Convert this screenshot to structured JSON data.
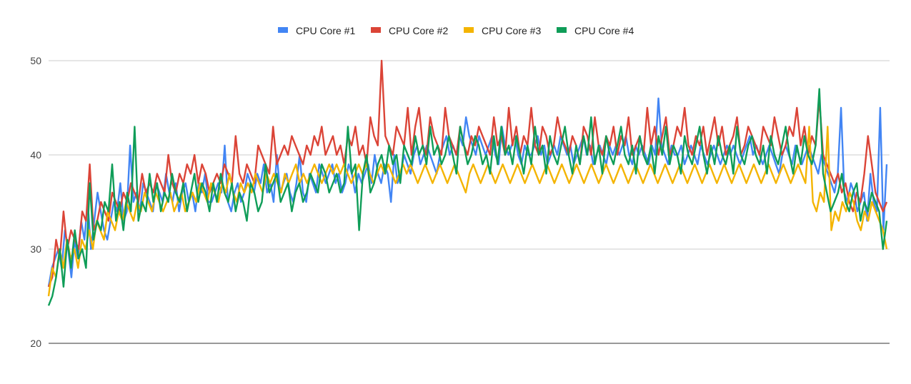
{
  "chart_data": {
    "type": "line",
    "title": "",
    "xlabel": "",
    "ylabel": "",
    "ylim": [
      20,
      50
    ],
    "yticks": [
      20,
      30,
      40,
      50
    ],
    "grid": true,
    "legend_position": "top",
    "series": [
      {
        "name": "CPU Core #1",
        "color": "#4285f4",
        "values": [
          26,
          28,
          29,
          30,
          28,
          32,
          30,
          27,
          31,
          29,
          33,
          31,
          35,
          30,
          33,
          36,
          34,
          32,
          31,
          33,
          35,
          34,
          37,
          33,
          34,
          41,
          35,
          36,
          34,
          37,
          36,
          35,
          34,
          37,
          36,
          35,
          38,
          36,
          35,
          37,
          34,
          36,
          37,
          35,
          36,
          34,
          37,
          36,
          38,
          35,
          35,
          36,
          37,
          36,
          41,
          35,
          34,
          36,
          37,
          35,
          36,
          38,
          37,
          36,
          38,
          37,
          39,
          36,
          37,
          35,
          40,
          36,
          37,
          38,
          36,
          35,
          37,
          40,
          36,
          35,
          38,
          37,
          36,
          39,
          38,
          37,
          38,
          39,
          37,
          38,
          36,
          37,
          39,
          38,
          36,
          38,
          37,
          38,
          39,
          37,
          40,
          38,
          37,
          39,
          38,
          35,
          40,
          37,
          38,
          40,
          39,
          38,
          40,
          41,
          39,
          40,
          41,
          40,
          39,
          38,
          40,
          41,
          42,
          40,
          41,
          40,
          42,
          41,
          44,
          42,
          41,
          40,
          42,
          41,
          40,
          41,
          42,
          40,
          39,
          43,
          41,
          40,
          41,
          42,
          40,
          39,
          41,
          40,
          40,
          41,
          42,
          40,
          41,
          39,
          40,
          41,
          40,
          42,
          41,
          40,
          41,
          39,
          40,
          41,
          42,
          40,
          41,
          39,
          40,
          41,
          40,
          39,
          41,
          40,
          41,
          40,
          41,
          42,
          40,
          39,
          41,
          40,
          41,
          40,
          39,
          41,
          40,
          46,
          41,
          40,
          39,
          41,
          40,
          40,
          41,
          39,
          40,
          41,
          40,
          39,
          41,
          40,
          39,
          40,
          41,
          40,
          39,
          40,
          41,
          40,
          41,
          40,
          39,
          40,
          41,
          42,
          40,
          41,
          40,
          39,
          40,
          41,
          40,
          39,
          38,
          40,
          41,
          40,
          39,
          41,
          40,
          39,
          40,
          41,
          40,
          39,
          38,
          40,
          39,
          38,
          37,
          36,
          38,
          45,
          36,
          35,
          37,
          36,
          34,
          35,
          36,
          33,
          38,
          35,
          34,
          45,
          32,
          39
        ]
      },
      {
        "name": "CPU Core #2",
        "color": "#db4437",
        "values": [
          26,
          27,
          31,
          29,
          34,
          30,
          32,
          31,
          30,
          34,
          33,
          39,
          32,
          33,
          35,
          34,
          33,
          36,
          35,
          34,
          36,
          35,
          37,
          36,
          35,
          38,
          36,
          37,
          36,
          38,
          37,
          36,
          40,
          37,
          36,
          38,
          37,
          39,
          38,
          40,
          37,
          39,
          38,
          36,
          37,
          38,
          37,
          39,
          38,
          37,
          42,
          38,
          37,
          39,
          38,
          37,
          41,
          40,
          39,
          38,
          43,
          39,
          40,
          41,
          40,
          42,
          41,
          40,
          39,
          41,
          40,
          42,
          41,
          43,
          40,
          41,
          42,
          40,
          41,
          39,
          42,
          41,
          43,
          40,
          41,
          39,
          44,
          42,
          41,
          50,
          42,
          41,
          40,
          43,
          42,
          41,
          45,
          40,
          43,
          45,
          41,
          40,
          44,
          42,
          41,
          40,
          45,
          42,
          41,
          40,
          43,
          41,
          40,
          42,
          41,
          43,
          42,
          41,
          40,
          44,
          41,
          42,
          40,
          45,
          41,
          43,
          40,
          42,
          41,
          45,
          41,
          40,
          43,
          42,
          40,
          41,
          44,
          42,
          41,
          40,
          42,
          41,
          39,
          43,
          42,
          40,
          44,
          41,
          40,
          42,
          41,
          43,
          40,
          42,
          41,
          44,
          40,
          41,
          42,
          40,
          45,
          41,
          43,
          40,
          42,
          44,
          40,
          41,
          43,
          42,
          45,
          41,
          40,
          42,
          41,
          43,
          40,
          42,
          44,
          41,
          43,
          40,
          41,
          42,
          44,
          40,
          41,
          43,
          42,
          41,
          40,
          43,
          42,
          41,
          44,
          42,
          40,
          41,
          43,
          42,
          45,
          41,
          43,
          40,
          42,
          41,
          46,
          40,
          39,
          38,
          37,
          38,
          36,
          37,
          35,
          34,
          36,
          35,
          38,
          42,
          39,
          36,
          35,
          34,
          35
        ]
      },
      {
        "name": "CPU Core #3",
        "color": "#f4b400",
        "values": [
          25,
          28,
          27,
          30,
          28,
          31,
          29,
          30,
          28,
          31,
          30,
          32,
          30,
          33,
          32,
          31,
          34,
          33,
          32,
          34,
          33,
          35,
          34,
          33,
          35,
          34,
          36,
          35,
          34,
          36,
          35,
          34,
          35,
          36,
          34,
          35,
          36,
          34,
          35,
          36,
          35,
          37,
          36,
          35,
          37,
          36,
          35,
          37,
          36,
          38,
          36,
          35,
          37,
          36,
          37,
          36,
          38,
          37,
          36,
          38,
          37,
          38,
          37,
          36,
          38,
          37,
          38,
          39,
          37,
          38,
          37,
          38,
          39,
          38,
          37,
          38,
          39,
          38,
          39,
          38,
          39,
          38,
          37,
          38,
          39,
          38,
          39,
          38,
          37,
          38,
          39,
          38,
          39,
          38,
          37,
          38,
          39,
          38,
          39,
          38,
          37,
          38,
          39,
          38,
          37,
          38,
          39,
          38,
          37,
          38,
          39,
          38,
          37,
          36,
          38,
          39,
          38,
          37,
          38,
          39,
          38,
          37,
          38,
          39,
          38,
          37,
          38,
          39,
          38,
          37,
          38,
          39,
          38,
          37,
          38,
          39,
          38,
          37,
          38,
          39,
          38,
          37,
          38,
          39,
          38,
          37,
          38,
          39,
          38,
          37,
          38,
          39,
          38,
          37,
          38,
          39,
          38,
          37,
          38,
          39,
          38,
          37,
          38,
          39,
          38,
          37,
          38,
          39,
          38,
          37,
          38,
          39,
          38,
          37,
          38,
          39,
          38,
          37,
          38,
          39,
          38,
          37,
          38,
          39,
          38,
          37,
          38,
          39,
          38,
          37,
          38,
          39,
          38,
          37,
          38,
          39,
          38,
          37,
          38,
          39,
          38,
          37,
          38,
          39,
          38,
          37,
          43,
          35,
          34,
          36,
          35,
          43,
          32,
          34,
          33,
          35,
          34,
          36,
          35,
          33,
          32,
          34,
          33,
          35,
          34,
          33,
          32,
          30
        ]
      },
      {
        "name": "CPU Core #4",
        "color": "#0f9d58",
        "values": [
          24,
          25,
          27,
          30,
          26,
          31,
          28,
          32,
          29,
          30,
          28,
          37,
          31,
          33,
          32,
          35,
          34,
          39,
          33,
          35,
          32,
          36,
          34,
          43,
          33,
          35,
          34,
          38,
          35,
          37,
          34,
          36,
          35,
          38,
          36,
          35,
          37,
          34,
          36,
          38,
          35,
          37,
          36,
          34,
          37,
          35,
          38,
          36,
          35,
          37,
          34,
          36,
          35,
          33,
          37,
          36,
          34,
          35,
          39,
          36,
          37,
          38,
          35,
          36,
          37,
          34,
          36,
          37,
          35,
          36,
          38,
          37,
          36,
          39,
          38,
          36,
          37,
          38,
          36,
          37,
          43,
          38,
          39,
          32,
          38,
          40,
          36,
          37,
          39,
          40,
          38,
          41,
          39,
          40,
          37,
          41,
          40,
          39,
          42,
          40,
          41,
          39,
          43,
          40,
          41,
          39,
          40,
          42,
          40,
          38,
          43,
          41,
          39,
          40,
          42,
          41,
          39,
          40,
          38,
          42,
          39,
          43,
          40,
          41,
          39,
          42,
          40,
          38,
          41,
          39,
          43,
          40,
          41,
          38,
          42,
          40,
          39,
          41,
          43,
          40,
          38,
          41,
          39,
          42,
          40,
          44,
          39,
          41,
          38,
          42,
          40,
          39,
          41,
          43,
          40,
          39,
          41,
          38,
          42,
          40,
          39,
          41,
          38,
          42,
          40,
          43,
          39,
          41,
          40,
          38,
          42,
          40,
          39,
          41,
          43,
          40,
          38,
          41,
          39,
          42,
          40,
          39,
          41,
          38,
          43,
          40,
          39,
          41,
          42,
          40,
          39,
          41,
          38,
          42,
          40,
          39,
          41,
          43,
          40,
          38,
          41,
          39,
          42,
          40,
          39,
          41,
          47,
          38,
          36,
          34,
          35,
          36,
          38,
          35,
          34,
          36,
          37,
          33,
          35,
          34,
          36,
          35,
          34,
          30,
          33
        ]
      }
    ]
  }
}
